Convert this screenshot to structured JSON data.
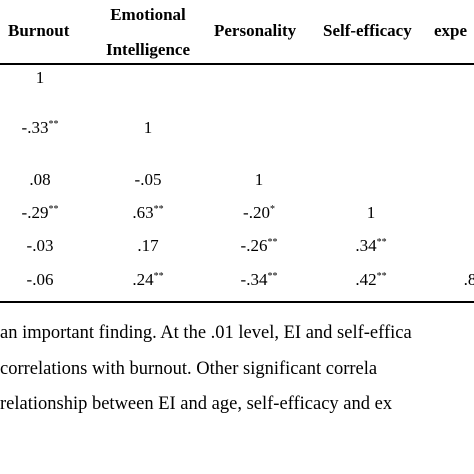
{
  "headers": {
    "burnout": "Burnout",
    "ei_line1": "Emotional",
    "ei_line2": "Intelligence",
    "personality": "Personality",
    "self_efficacy": "Self-efficacy",
    "experience": "expe"
  },
  "rows": [
    [
      "1",
      "",
      "",
      "",
      ""
    ],
    [
      "-.33**",
      "1",
      "",
      "",
      ""
    ],
    [
      ".08",
      "-.05",
      "1",
      "",
      ""
    ],
    [
      "-.29**",
      ".63**",
      "-.20*",
      "1",
      ""
    ],
    [
      "-.03",
      ".17",
      "-.26**",
      ".34**",
      ""
    ],
    [
      "-.06",
      ".24**",
      "-.34**",
      ".42**",
      ".8"
    ]
  ],
  "paragraph": [
    "an important finding. At the .01 level, EI and self-effica",
    " correlations with burnout. Other significant correla",
    "relationship between EI and age, self-efficacy and ex"
  ]
}
